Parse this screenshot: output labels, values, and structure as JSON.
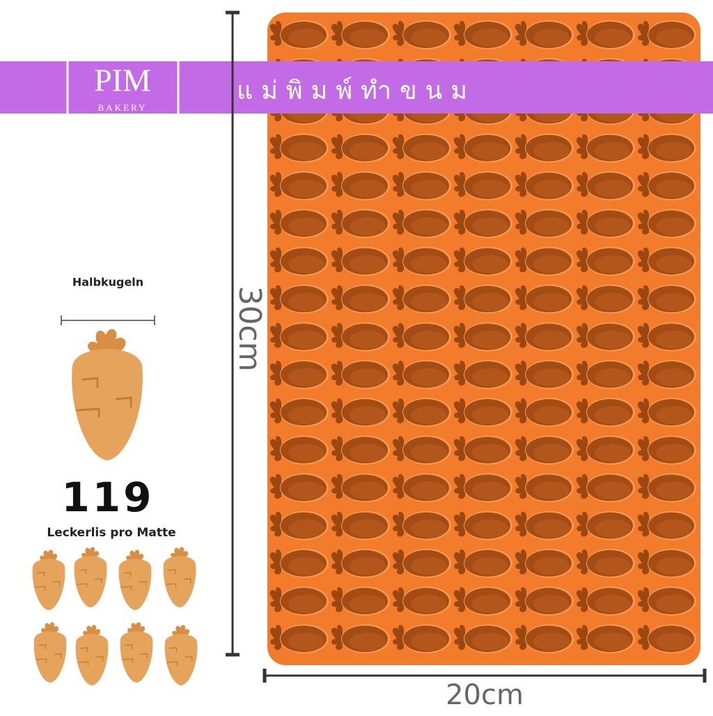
{
  "banner": {
    "brand": "PIM",
    "brand_sub": "BAKERY",
    "title": "แม่พิมพ์ทำขนม"
  },
  "dimensions": {
    "height": "30cm",
    "width": "20cm"
  },
  "info": {
    "shape": "Halbkugeln",
    "count": 119,
    "count_label": "Leckerlis pro Matte"
  }
}
